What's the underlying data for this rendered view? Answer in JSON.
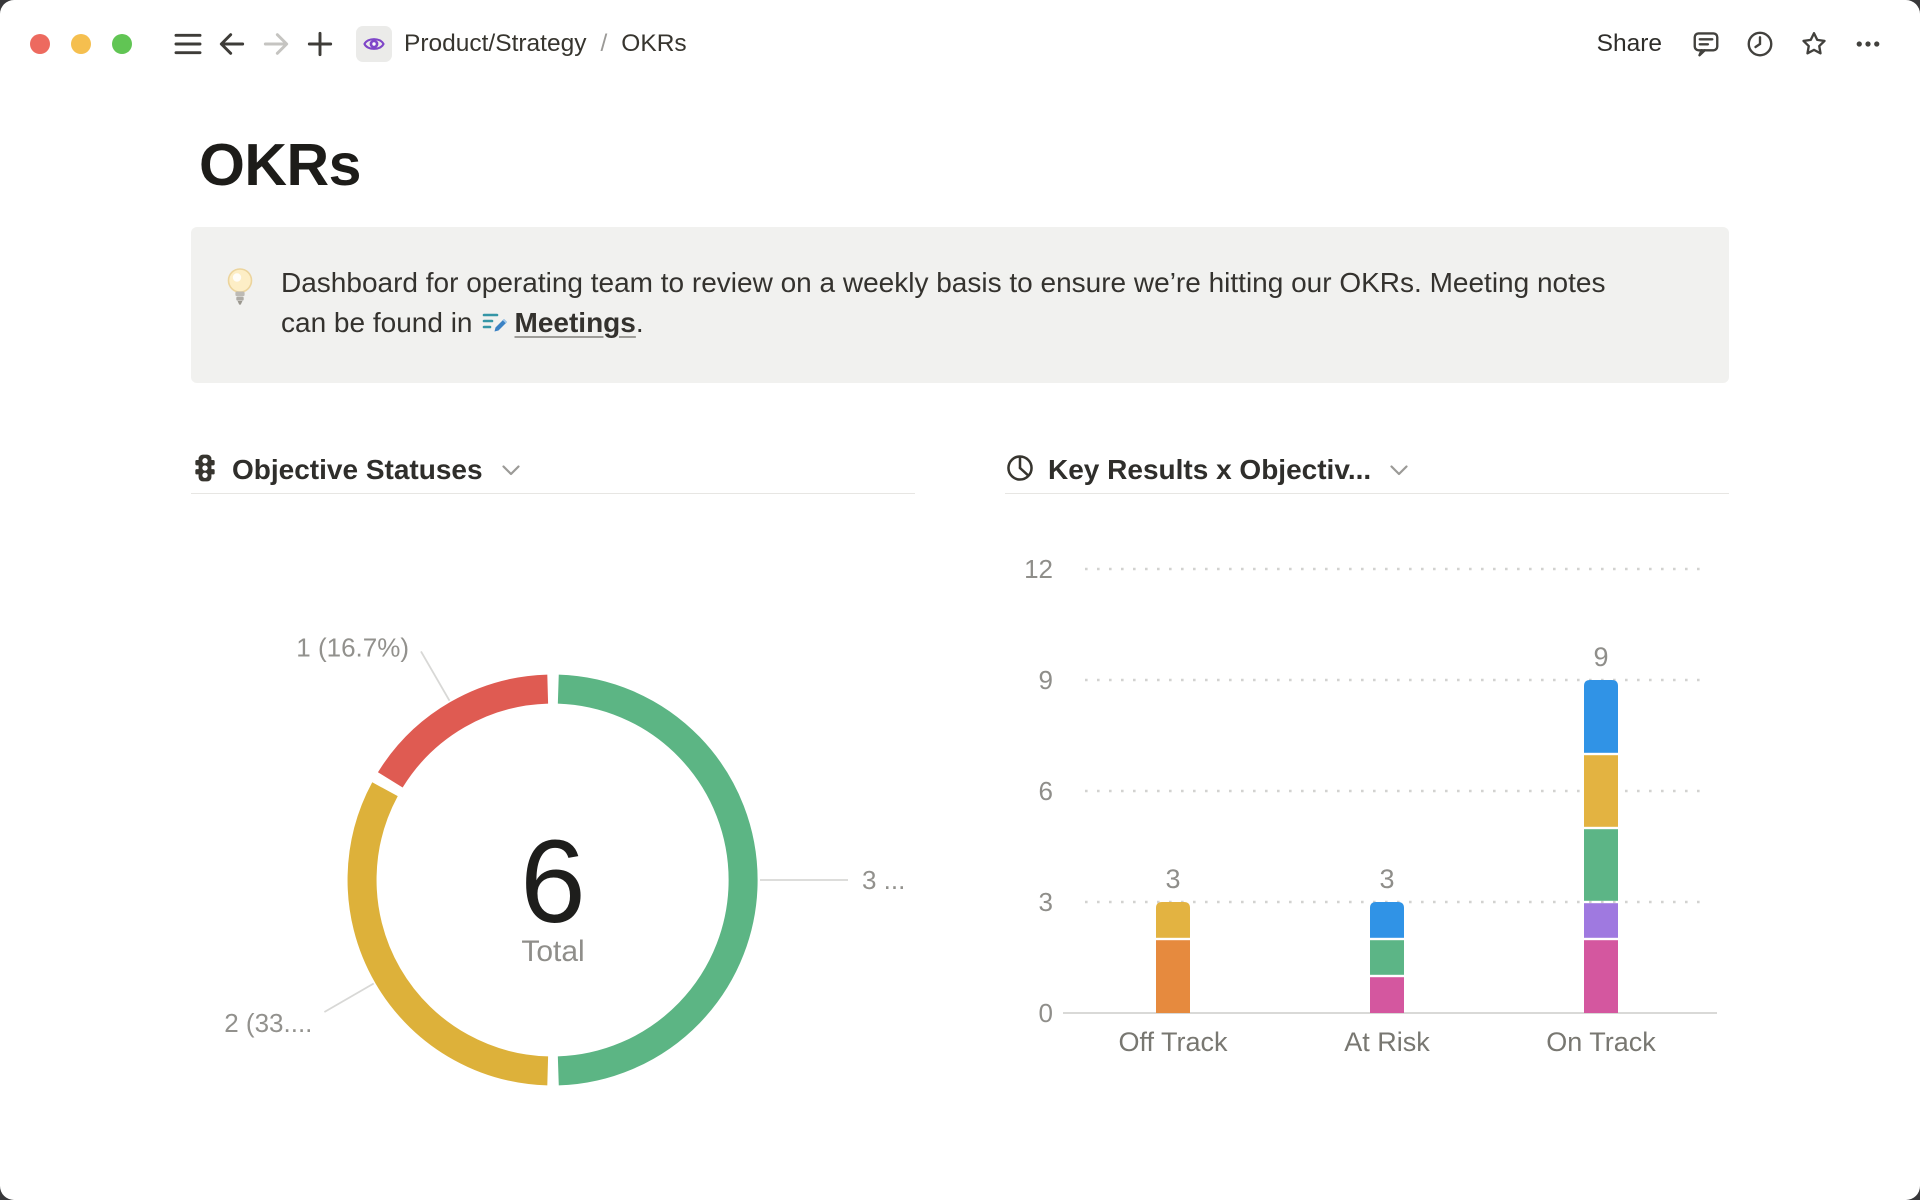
{
  "titlebar": {
    "window_controls": {
      "close_color": "#ed6a5f",
      "minimize_color": "#f5bf4f",
      "zoom_color": "#61c554"
    },
    "nav_icons": [
      "hamburger-menu",
      "back-arrow",
      "forward-arrow",
      "new-page-plus"
    ],
    "breadcrumb": {
      "page_icon": "purple-eye",
      "parent": "Product/Strategy",
      "separator": "/",
      "current": "OKRs"
    },
    "share_label": "Share",
    "action_icons": [
      "comments-bubble",
      "updates-clock",
      "favorite-star",
      "more-ellipsis"
    ]
  },
  "page": {
    "title": "OKRs",
    "callout": {
      "icon": "lightbulb",
      "text": "Dashboard for operating team to review on a weekly basis to ensure we’re hitting our OKRs. Meeting notes can be found in",
      "link": {
        "icon": "meetings-database",
        "label": "Meetings"
      },
      "suffix": "."
    }
  },
  "colors": {
    "donut_red": "#df5b52",
    "donut_yellow": "#ddb13a",
    "donut_green": "#5cb584",
    "bar_orange": "#e68a3e",
    "bar_yellow": "#e3b341",
    "bar_green": "#5cb586",
    "bar_blue": "#3093e6",
    "bar_pink": "#d4579f",
    "bar_purple": "#9f79e0",
    "callout_bg": "#f1f1ef",
    "text_dark": "#37352f",
    "text_gray": "#8f8e8a"
  },
  "chart_data": [
    {
      "type": "donut",
      "title": "Objective Statuses",
      "icon": "traffic-light",
      "center_value": "6",
      "center_label": "Total",
      "total": 6,
      "direction": "clockwise",
      "start_angle_deg": 0,
      "slices": [
        {
          "display_label": "3 ...",
          "value": 3,
          "percent": 50.0,
          "color": "#5cb584"
        },
        {
          "display_label": "2 (33....",
          "value": 2,
          "percent": 33.3,
          "color": "#ddb13a"
        },
        {
          "display_label": "1 (16.7%)",
          "value": 1,
          "percent": 16.7,
          "color": "#df5b52"
        }
      ]
    },
    {
      "type": "stacked-bar",
      "title": "Key Results x Objectiv...",
      "icon": "pie-chart",
      "categories": [
        "Off Track",
        "At Risk",
        "On Track"
      ],
      "totals": [
        3,
        3,
        9
      ],
      "bars": [
        {
          "category": "Off Track",
          "total": 3,
          "segments": [
            {
              "value": 2,
              "color": "#e68a3e"
            },
            {
              "value": 1,
              "color": "#e3b341"
            }
          ]
        },
        {
          "category": "At Risk",
          "total": 3,
          "segments": [
            {
              "value": 1,
              "color": "#d4579f"
            },
            {
              "value": 1,
              "color": "#5cb586"
            },
            {
              "value": 1,
              "color": "#3093e6"
            }
          ]
        },
        {
          "category": "On Track",
          "total": 9,
          "segments": [
            {
              "value": 2,
              "color": "#d4579f"
            },
            {
              "value": 1,
              "color": "#9f79e0"
            },
            {
              "value": 2,
              "color": "#5cb586"
            },
            {
              "value": 2,
              "color": "#e3b341"
            },
            {
              "value": 2,
              "color": "#3093e6"
            }
          ]
        }
      ],
      "ylim": [
        0,
        12
      ],
      "yticks": [
        0,
        3,
        6,
        9,
        12
      ],
      "grid": "dotted-horizontal",
      "legend": "none"
    }
  ]
}
